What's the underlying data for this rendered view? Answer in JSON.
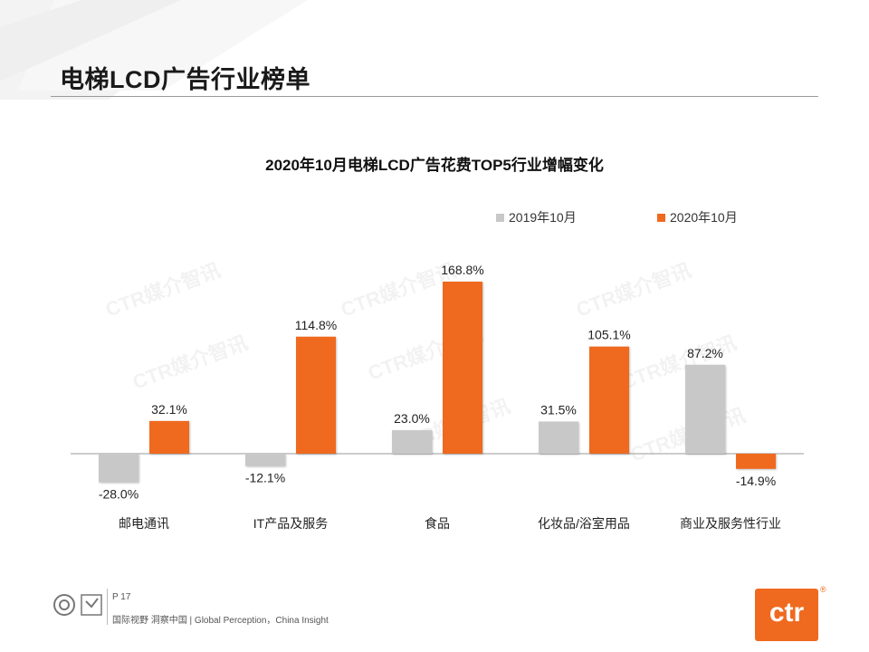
{
  "page": {
    "title": "电梯LCD广告行业榜单",
    "page_number": "P 17",
    "tagline": "国际视野 洞察中国 | Global Perception，China Insight",
    "logo_text": "ctr",
    "logo_mark": "®",
    "watermark_text": "CTR媒介智讯"
  },
  "colors": {
    "series_2019": "#c8c8c8",
    "series_2020": "#ef6a1f",
    "accent": "#ef6a1f"
  },
  "chart_data": {
    "type": "bar",
    "title": "2020年10月电梯LCD广告花费TOP5行业增幅变化",
    "categories": [
      "邮电通讯",
      "IT产品及服务",
      "食品",
      "化妆品/浴室用品",
      "商业及服务性行业"
    ],
    "series": [
      {
        "name": "2019年10月",
        "values": [
          -28.0,
          -12.1,
          23.0,
          31.5,
          87.2
        ],
        "labels": [
          "-28.0%",
          "-12.1%",
          "23.0%",
          "31.5%",
          "87.2%"
        ]
      },
      {
        "name": "2020年10月",
        "values": [
          32.1,
          114.8,
          168.8,
          105.1,
          -14.9
        ],
        "labels": [
          "32.1%",
          "114.8%",
          "168.8%",
          "105.1%",
          "-14.9%"
        ]
      }
    ],
    "ylim": [
      -40,
      180
    ],
    "xlabel": "",
    "ylabel": "",
    "grid": false,
    "legend": "top-right"
  }
}
